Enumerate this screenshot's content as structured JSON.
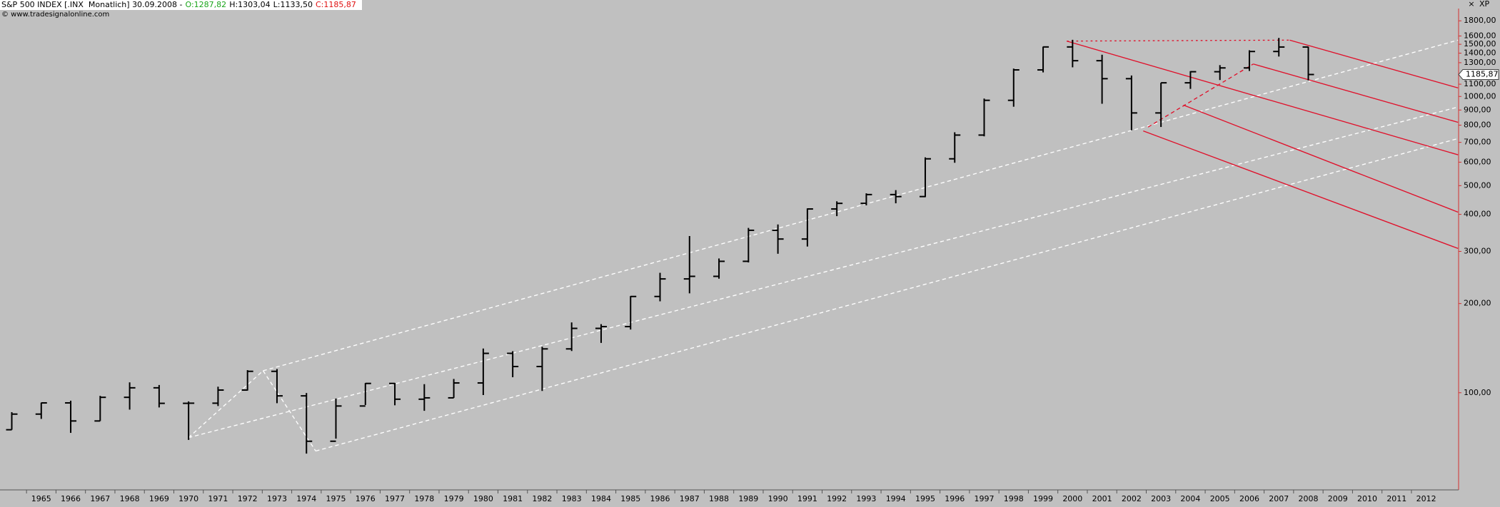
{
  "chart_data": {
    "type": "ohlc",
    "title": "S&P 500 INDEX [.INX  Monatlich] 30.09.2008 -",
    "header": [
      "O:1287,82",
      "H:1303,04",
      "L:1133,50",
      "C:1185,87"
    ],
    "source": "© www.tradesignalonline.com",
    "corner_label": "XP",
    "log_scale": true,
    "color": "#000000",
    "x": [
      1964,
      1965,
      1966,
      1967,
      1968,
      1969,
      1970,
      1971,
      1972,
      1973,
      1974,
      1975,
      1976,
      1977,
      1978,
      1979,
      1980,
      1981,
      1982,
      1983,
      1984,
      1985,
      1986,
      1987,
      1988,
      1989,
      1990,
      1991,
      1992,
      1993,
      1994,
      1995,
      1996,
      1997,
      1998,
      1999,
      2000,
      2001,
      2002,
      2003,
      2004,
      2005,
      2006,
      2007,
      2008
    ],
    "open": [
      75,
      84.7,
      92.4,
      80.3,
      96.5,
      103.9,
      92.1,
      92.2,
      102.1,
      118.1,
      97.6,
      68.6,
      90.2,
      107.5,
      95.1,
      96.1,
      107.9,
      135.8,
      122.6,
      140.6,
      164.9,
      167.2,
      211.3,
      242.2,
      247.1,
      277.7,
      353.4,
      330.2,
      417.1,
      435.7,
      466.5,
      459.3,
      615.9,
      740.7,
      970.4,
      1229.2,
      1469.3,
      1320.3,
      1148.1,
      879.8,
      1111.9,
      1211.9,
      1248.3,
      1418.3,
      1468.4
    ],
    "high": [
      86,
      92.6,
      94,
      97.6,
      108.4,
      106.2,
      93.5,
      104.8,
      119.2,
      120.2,
      99.8,
      95.6,
      107.8,
      107.9,
      106.9,
      111.3,
      141,
      138.1,
      143,
      172.7,
      170.4,
      212,
      254,
      337.9,
      283.9,
      360,
      369.8,
      419,
      442.7,
      471,
      482.9,
      622.9,
      757,
      983.8,
      1241.8,
      1473.1,
      1553.1,
      1383.4,
      1176.9,
      1112,
      1217.3,
      1275.8,
      1431.8,
      1576.1,
      1471.8
    ],
    "low": [
      75,
      81.6,
      73.2,
      80.3,
      87.7,
      89.2,
      69.3,
      90.2,
      101.7,
      92.2,
      62.3,
      70,
      90.9,
      90.7,
      86.9,
      96.1,
      98.2,
      112.8,
      101.4,
      138.3,
      147.3,
      163.4,
      203.5,
      216.5,
      242.6,
      275.3,
      294.5,
      311.5,
      394.5,
      429,
      435.9,
      457.2,
      597.3,
      733.5,
      923.3,
      1205.5,
      1254.1,
      944.8,
      768.6,
      788.9,
      1060.7,
      1136.2,
      1219.3,
      1363.9,
      1133.5
    ],
    "close": [
      84.7,
      92.4,
      80.3,
      96.5,
      103.9,
      92.1,
      92.2,
      102.1,
      118.1,
      97.6,
      68.6,
      90.2,
      107.5,
      95.1,
      96.1,
      107.9,
      135.8,
      122.6,
      140.6,
      164.9,
      167.2,
      211.3,
      242.2,
      247.1,
      277.7,
      353.4,
      330.2,
      417.1,
      435.7,
      466.5,
      459.3,
      615.9,
      740.7,
      970.4,
      1229.2,
      1469.3,
      1320.3,
      1148.1,
      879.8,
      1111.9,
      1211.9,
      1248.3,
      1418.3,
      1468.4,
      1185.87
    ],
    "last_price": {
      "value": 1185.87,
      "label": "1185,87"
    },
    "xlim": [
      1964.1,
      2013.6
    ],
    "xticks": [
      1965,
      1966,
      1967,
      1968,
      1969,
      1970,
      1971,
      1972,
      1973,
      1974,
      1975,
      1976,
      1977,
      1978,
      1979,
      1980,
      1981,
      1982,
      1983,
      1984,
      1985,
      1986,
      1987,
      1988,
      1989,
      1990,
      1991,
      1992,
      1993,
      1994,
      1995,
      1996,
      1997,
      1998,
      1999,
      2000,
      2001,
      2002,
      2003,
      2004,
      2005,
      2006,
      2007,
      2008,
      2009,
      2010,
      2011,
      2012
    ],
    "ylim": [
      47,
      1980
    ],
    "yticks": [
      {
        "value": 1800,
        "label": "1800,00"
      },
      {
        "value": 1600,
        "label": "1600,00"
      },
      {
        "value": 1500,
        "label": "1500,00"
      },
      {
        "value": 1400,
        "label": "1400,00"
      },
      {
        "value": 1300,
        "label": "1300,00"
      },
      {
        "value": 1100,
        "label": "1100,00"
      },
      {
        "value": 1000,
        "label": "1000,00"
      },
      {
        "value": 900,
        "label": "900,00"
      },
      {
        "value": 800,
        "label": "800,00"
      },
      {
        "value": 700,
        "label": "700,00"
      },
      {
        "value": 600,
        "label": "600,00"
      },
      {
        "value": 500,
        "label": "500,00"
      },
      {
        "value": 400,
        "label": "400,00"
      },
      {
        "value": 300,
        "label": "300,00"
      },
      {
        "value": 200,
        "label": "200,00"
      },
      {
        "value": 100,
        "label": "100,00"
      }
    ]
  }
}
